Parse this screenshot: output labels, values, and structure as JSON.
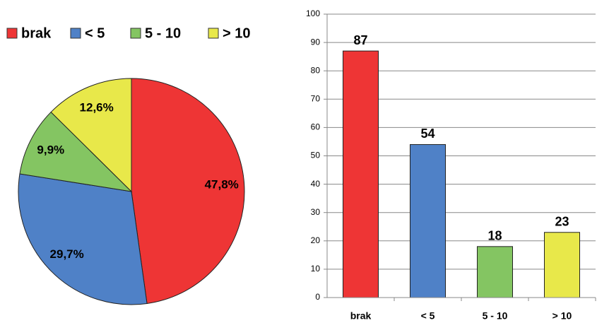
{
  "chart_data": [
    {
      "type": "pie",
      "categories": [
        "brak",
        "< 5",
        "5 - 10",
        "> 10"
      ],
      "values": [
        47.8,
        29.7,
        9.9,
        12.6
      ],
      "value_labels": [
        "47,8%",
        "29,7%",
        "9,9%",
        "12,6%"
      ],
      "colors": [
        "#ee3535",
        "#4f81c7",
        "#84c562",
        "#e8e84a"
      ],
      "legend": "top"
    },
    {
      "type": "bar",
      "categories": [
        "brak",
        "< 5",
        "5 - 10",
        "> 10"
      ],
      "values": [
        87,
        54,
        18,
        23
      ],
      "colors": [
        "#ee3535",
        "#4f81c7",
        "#84c562",
        "#e8e84a"
      ],
      "ylim": [
        0,
        100
      ],
      "yticks": [
        0,
        10,
        20,
        30,
        40,
        50,
        60,
        70,
        80,
        90,
        100
      ],
      "grid": true
    }
  ]
}
